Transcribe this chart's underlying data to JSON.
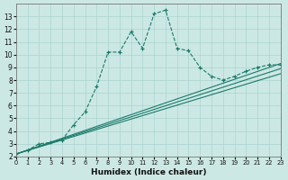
{
  "xlabel": "Humidex (Indice chaleur)",
  "bg_color": "#cce8e4",
  "line_color": "#1a7a6a",
  "grid_color": "#aad4d0",
  "xlim": [
    0,
    23
  ],
  "ylim": [
    2,
    14
  ],
  "xticks": [
    0,
    1,
    2,
    3,
    4,
    5,
    6,
    7,
    8,
    9,
    10,
    11,
    12,
    13,
    14,
    15,
    16,
    17,
    18,
    19,
    20,
    21,
    22,
    23
  ],
  "yticks": [
    2,
    3,
    4,
    5,
    6,
    7,
    8,
    9,
    10,
    11,
    12,
    13
  ],
  "main_x": [
    0,
    1,
    2,
    3,
    4,
    5,
    6,
    7,
    8,
    9,
    10,
    11,
    12,
    13,
    14,
    15,
    16,
    17,
    18,
    19,
    20,
    21,
    22,
    23
  ],
  "main_y": [
    2.2,
    2.5,
    3.0,
    3.1,
    3.3,
    4.5,
    5.5,
    7.5,
    10.2,
    10.2,
    11.8,
    10.5,
    13.2,
    13.5,
    10.5,
    10.3,
    9.0,
    8.3,
    8.0,
    8.3,
    8.7,
    9.0,
    9.2,
    9.2
  ],
  "line1_x": [
    0,
    23
  ],
  "line1_y": [
    2.2,
    9.3
  ],
  "line2_x": [
    0,
    23
  ],
  "line2_y": [
    2.2,
    8.9
  ],
  "line3_x": [
    0,
    23
  ],
  "line3_y": [
    2.2,
    8.5
  ]
}
